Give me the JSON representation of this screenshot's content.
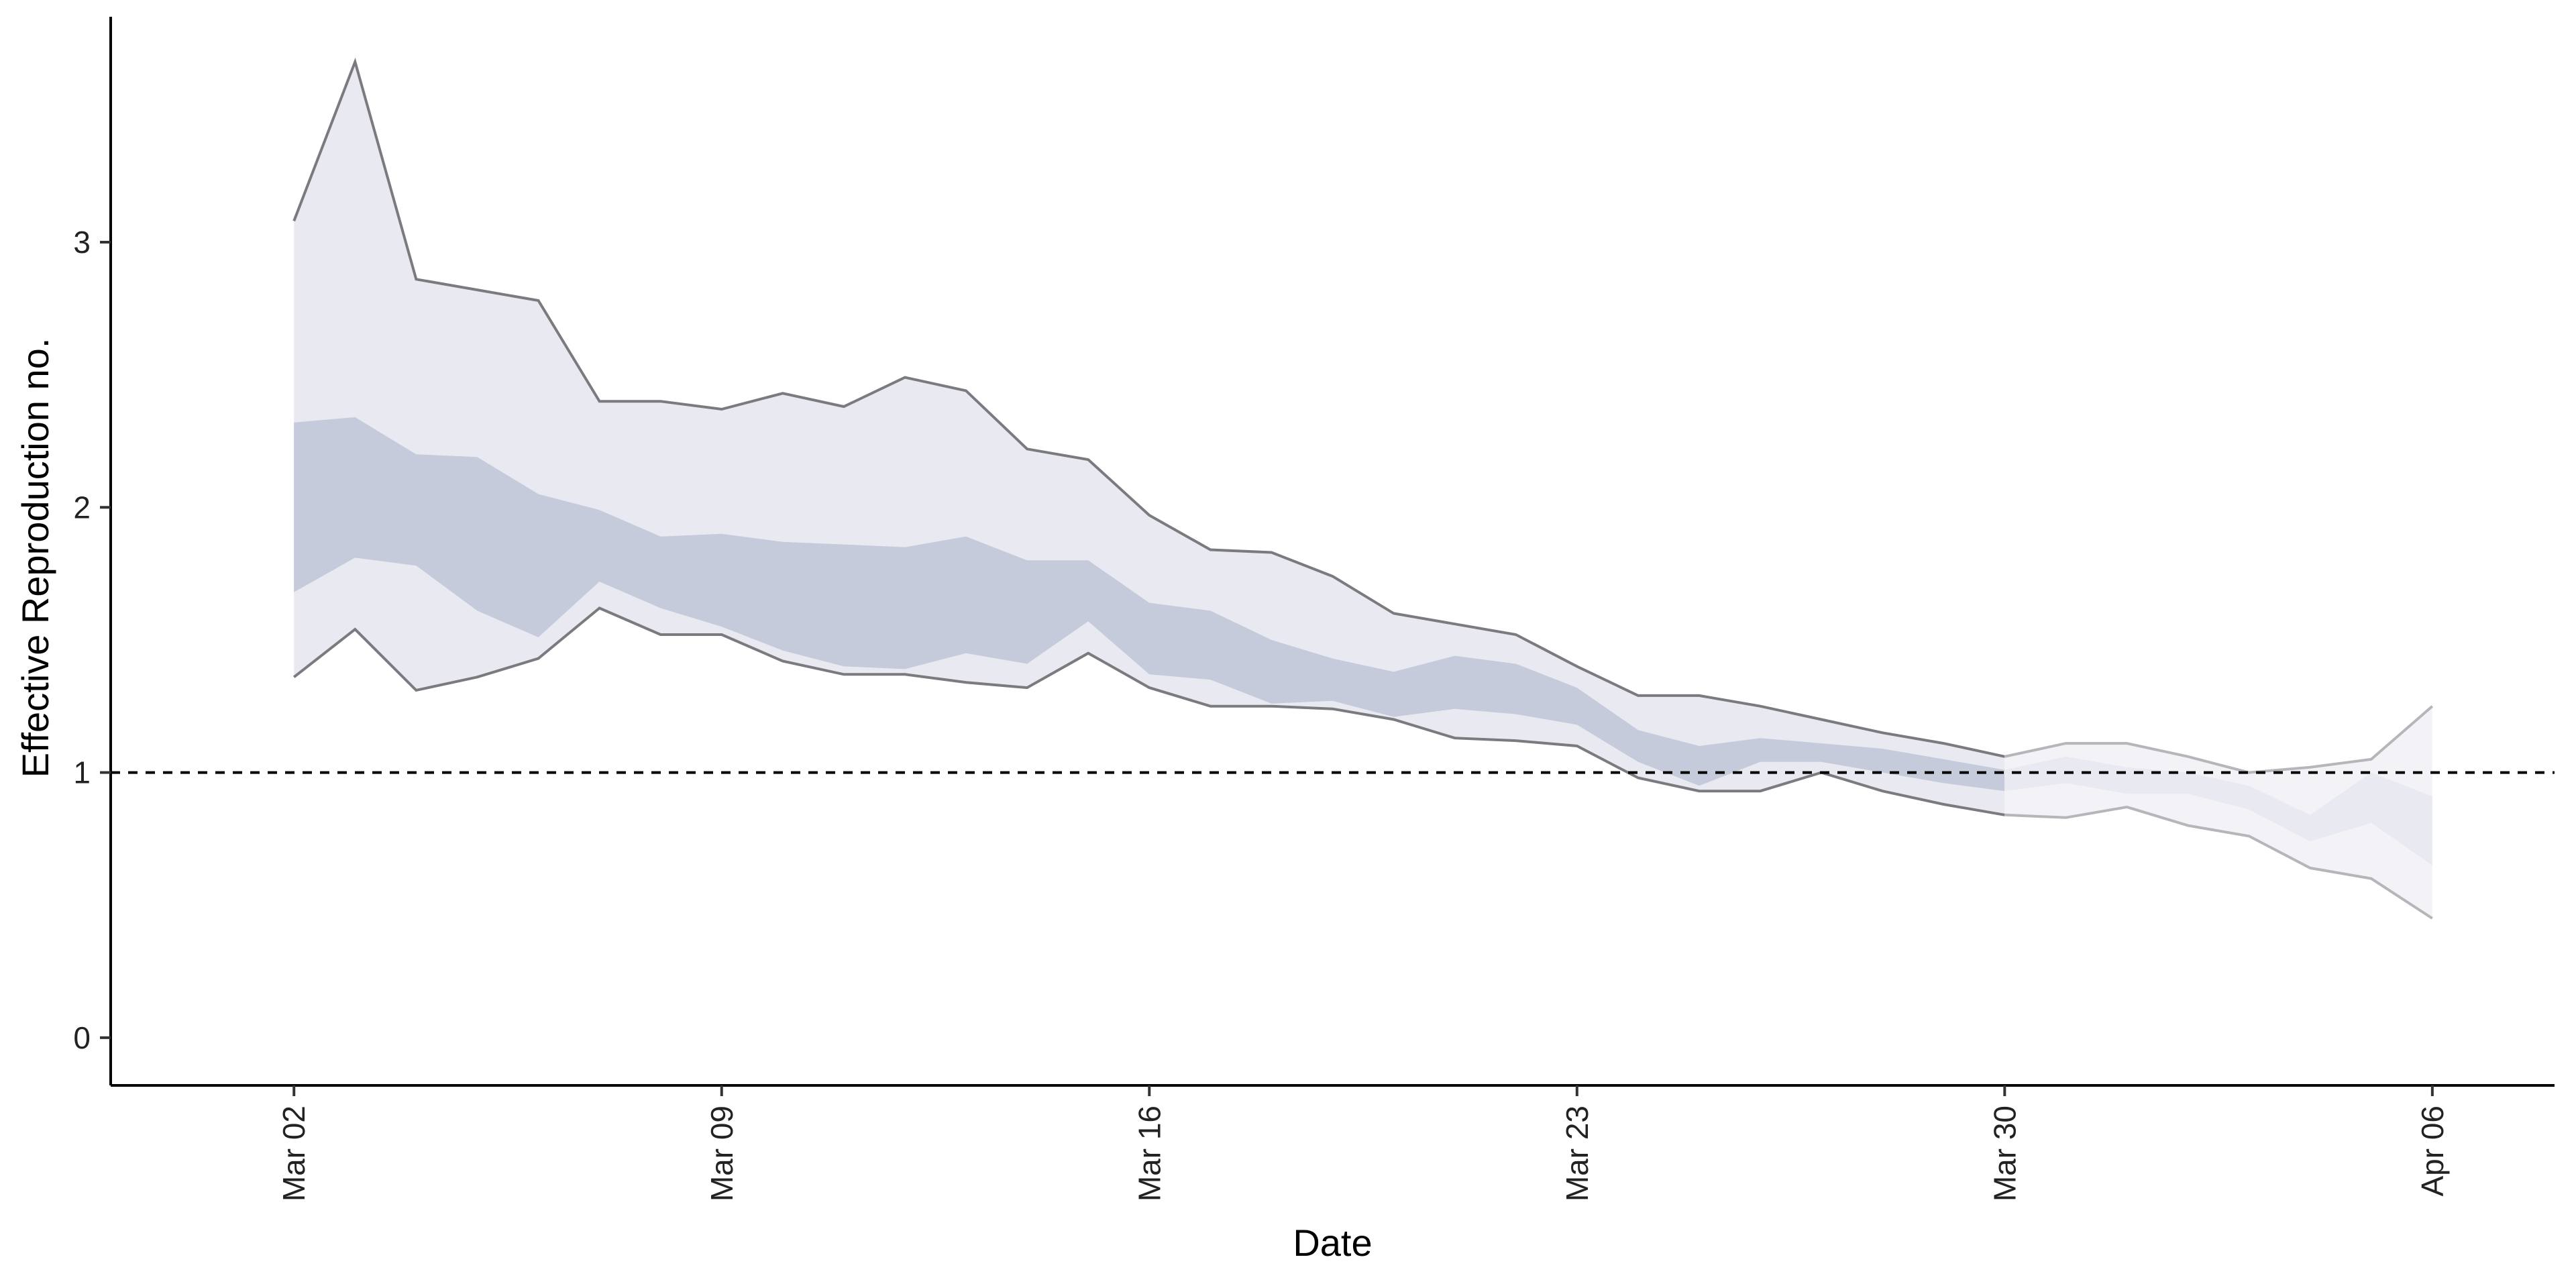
{
  "chart_data": {
    "type": "area",
    "xlabel": "Date",
    "ylabel": "Effective Reproduction no.",
    "ylim": [
      -0.18,
      3.85
    ],
    "y_ticks": [
      0,
      1,
      2,
      3
    ],
    "x_ticks": [
      "Mar 02",
      "Mar 09",
      "Mar 16",
      "Mar 23",
      "Mar 30",
      "Apr 06"
    ],
    "x_tick_dates": [
      "2020-03-02",
      "2020-03-09",
      "2020-03-16",
      "2020-03-23",
      "2020-03-30",
      "2020-04-06"
    ],
    "xlim": [
      "2020-02-28",
      "2020-04-08"
    ],
    "reference_line": {
      "y": 1,
      "style": "dashed"
    },
    "grid": false,
    "colors": {
      "outer_band": "#e9eaf1",
      "inner_band": "#c6cbdc",
      "bound_line": "#7a7a7f",
      "recent_outer_band": "#f3f3f7",
      "recent_inner_band": "#e9eaf1",
      "recent_bound_line": "#b5b5ba",
      "axis": "#000000"
    },
    "dates": [
      "2020-03-02",
      "2020-03-03",
      "2020-03-04",
      "2020-03-05",
      "2020-03-06",
      "2020-03-07",
      "2020-03-08",
      "2020-03-09",
      "2020-03-10",
      "2020-03-11",
      "2020-03-12",
      "2020-03-13",
      "2020-03-14",
      "2020-03-15",
      "2020-03-16",
      "2020-03-17",
      "2020-03-18",
      "2020-03-19",
      "2020-03-20",
      "2020-03-21",
      "2020-03-22",
      "2020-03-23",
      "2020-03-24",
      "2020-03-25",
      "2020-03-26",
      "2020-03-27",
      "2020-03-28",
      "2020-03-29",
      "2020-03-30",
      "2020-03-31",
      "2020-04-01",
      "2020-04-02",
      "2020-04-03",
      "2020-04-04",
      "2020-04-05",
      "2020-04-06"
    ],
    "outer_upper": [
      3.08,
      3.68,
      2.86,
      2.82,
      2.78,
      2.4,
      2.4,
      2.37,
      2.43,
      2.38,
      2.49,
      2.44,
      2.22,
      2.18,
      1.97,
      1.84,
      1.83,
      1.74,
      1.6,
      1.56,
      1.52,
      1.4,
      1.29,
      1.29,
      1.25,
      1.2,
      1.15,
      1.11,
      1.06,
      1.11,
      1.11,
      1.06,
      1.0,
      1.02,
      1.05,
      1.25
    ],
    "outer_lower": [
      1.36,
      1.54,
      1.31,
      1.36,
      1.43,
      1.62,
      1.52,
      1.52,
      1.42,
      1.37,
      1.37,
      1.34,
      1.32,
      1.45,
      1.32,
      1.25,
      1.25,
      1.24,
      1.2,
      1.13,
      1.12,
      1.1,
      0.98,
      0.93,
      0.93,
      1.0,
      0.93,
      0.88,
      0.84,
      0.83,
      0.87,
      0.8,
      0.76,
      0.64,
      0.6,
      0.45
    ],
    "inner_upper": [
      2.32,
      2.34,
      2.2,
      2.19,
      2.05,
      1.99,
      1.89,
      1.9,
      1.87,
      1.86,
      1.85,
      1.89,
      1.8,
      1.8,
      1.64,
      1.61,
      1.5,
      1.43,
      1.38,
      1.44,
      1.41,
      1.32,
      1.16,
      1.1,
      1.13,
      1.11,
      1.09,
      1.05,
      1.01,
      1.06,
      1.02,
      1.0,
      0.95,
      0.84,
      1.0,
      0.91
    ],
    "inner_lower": [
      1.68,
      1.81,
      1.78,
      1.61,
      1.51,
      1.72,
      1.62,
      1.55,
      1.46,
      1.4,
      1.39,
      1.45,
      1.41,
      1.57,
      1.37,
      1.35,
      1.26,
      1.27,
      1.21,
      1.24,
      1.22,
      1.18,
      1.04,
      0.95,
      1.04,
      1.04,
      1.0,
      0.96,
      0.93,
      0.96,
      0.92,
      0.92,
      0.86,
      0.74,
      0.81,
      0.65
    ],
    "recent_from": "2020-03-30"
  }
}
